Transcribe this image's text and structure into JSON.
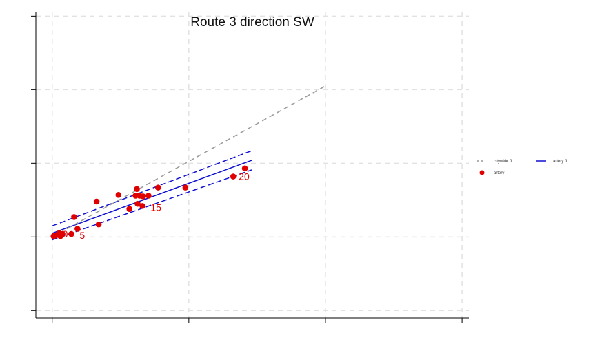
{
  "chart_data": {
    "type": "scatter",
    "title": "Route 3 direction SW",
    "xlabel": "",
    "ylabel": "",
    "xlim": [
      -0.3,
      6.1
    ],
    "ylim": [
      -1.1,
      3.05
    ],
    "x_ticks": [
      0,
      2,
      4,
      6
    ],
    "y_ticks": [
      -1,
      0,
      1,
      2,
      3
    ],
    "grid": true,
    "legend_position": "right",
    "colors": {
      "points": "#e00000",
      "artery_fit": "#1010d0",
      "citywide_fit": "#999999",
      "grid": "#e2e2e2",
      "axis": "#000000"
    },
    "series": [
      {
        "name": "artery",
        "kind": "points",
        "points": [
          {
            "x": 0.02,
            "y": 0.01
          },
          {
            "x": 0.05,
            "y": 0.02
          },
          {
            "x": 0.08,
            "y": 0.03
          },
          {
            "x": 0.1,
            "y": 0.05
          },
          {
            "x": 0.12,
            "y": 0.01
          },
          {
            "x": 0.15,
            "y": 0.04
          },
          {
            "x": 0.28,
            "y": 0.04
          },
          {
            "x": 0.32,
            "y": 0.27
          },
          {
            "x": 0.37,
            "y": 0.11
          },
          {
            "x": 0.65,
            "y": 0.48
          },
          {
            "x": 0.68,
            "y": 0.17
          },
          {
            "x": 0.97,
            "y": 0.57
          },
          {
            "x": 1.13,
            "y": 0.38
          },
          {
            "x": 1.22,
            "y": 0.56
          },
          {
            "x": 1.24,
            "y": 0.65
          },
          {
            "x": 1.25,
            "y": 0.45
          },
          {
            "x": 1.28,
            "y": 0.56
          },
          {
            "x": 1.32,
            "y": 0.42
          },
          {
            "x": 1.33,
            "y": 0.55
          },
          {
            "x": 1.41,
            "y": 0.56
          },
          {
            "x": 1.55,
            "y": 0.67
          },
          {
            "x": 1.95,
            "y": 0.67
          },
          {
            "x": 2.65,
            "y": 0.82
          },
          {
            "x": 2.82,
            "y": 0.93
          }
        ],
        "labels": [
          {
            "text": "0",
            "x": 0.12,
            "y": 0.04
          },
          {
            "text": "5",
            "x": 0.37,
            "y": 0.02
          },
          {
            "text": "15",
            "x": 1.41,
            "y": 0.4
          },
          {
            "text": "20",
            "x": 2.7,
            "y": 0.82
          }
        ]
      },
      {
        "name": "artery fit",
        "kind": "line",
        "points": [
          {
            "x": 0.0,
            "y": 0.05
          },
          {
            "x": 2.92,
            "y": 1.04
          }
        ]
      },
      {
        "name": "artery fit upper",
        "kind": "dashed-line",
        "points": [
          {
            "x": 0.0,
            "y": 0.15
          },
          {
            "x": 2.92,
            "y": 1.17
          }
        ]
      },
      {
        "name": "artery fit lower",
        "kind": "dashed-line",
        "points": [
          {
            "x": 0.0,
            "y": -0.04
          },
          {
            "x": 2.92,
            "y": 0.91
          }
        ]
      },
      {
        "name": "citywide fit",
        "kind": "dashed-line",
        "points": [
          {
            "x": 0.0,
            "y": 0.0
          },
          {
            "x": 4.0,
            "y": 2.05
          }
        ]
      }
    ],
    "legend": {
      "items": [
        {
          "label": "citywide fit",
          "marker": "dash",
          "color": "#999999"
        },
        {
          "label": "artery fit",
          "marker": "dash",
          "color": "#1010d0"
        },
        {
          "label": "artery",
          "marker": "dot",
          "color": "#e00000"
        }
      ]
    }
  }
}
